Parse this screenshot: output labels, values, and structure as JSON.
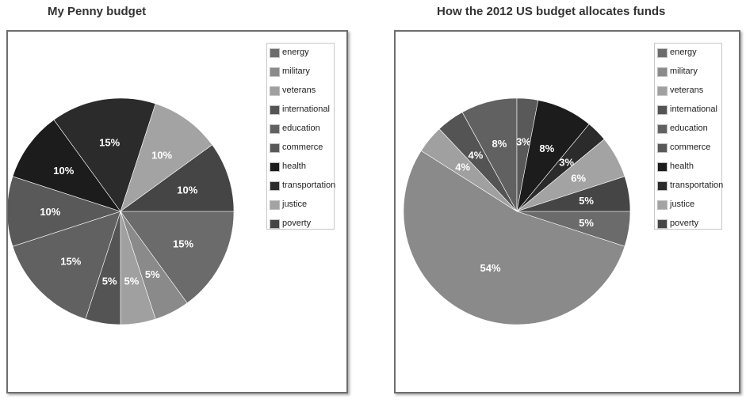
{
  "chart_data": [
    {
      "type": "pie",
      "title": "My Penny budget",
      "legend_placement": "top-right",
      "series": [
        {
          "label": "energy",
          "value": 15,
          "data_label": "15%",
          "color": "#6b6b6b"
        },
        {
          "label": "military",
          "value": 5,
          "data_label": "5%",
          "color": "#8a8a8a"
        },
        {
          "label": "veterans",
          "value": 5,
          "data_label": "5%",
          "color": "#a0a0a0"
        },
        {
          "label": "international",
          "value": 5,
          "data_label": "5%",
          "color": "#545454"
        },
        {
          "label": "education",
          "value": 15,
          "data_label": "15%",
          "color": "#616161"
        },
        {
          "label": "commerce",
          "value": 10,
          "data_label": "10%",
          "color": "#595959"
        },
        {
          "label": "health",
          "value": 10,
          "data_label": "10%",
          "color": "#1c1c1c"
        },
        {
          "label": "transportation",
          "value": 15,
          "data_label": "15%",
          "color": "#2b2b2b"
        },
        {
          "label": "justice",
          "value": 10,
          "data_label": "10%",
          "color": "#a3a3a3"
        },
        {
          "label": "poverty",
          "value": 10,
          "data_label": "10%",
          "color": "#454545"
        }
      ]
    },
    {
      "type": "pie",
      "title": "How the 2012 US budget allocates funds",
      "legend_placement": "top-right",
      "series": [
        {
          "label": "energy",
          "value": 5,
          "data_label": "5%",
          "color": "#6b6b6b"
        },
        {
          "label": "military",
          "value": 54,
          "data_label": "54%",
          "color": "#8a8a8a"
        },
        {
          "label": "veterans",
          "value": 4,
          "data_label": "4%",
          "color": "#a0a0a0"
        },
        {
          "label": "international",
          "value": 4,
          "data_label": "4%",
          "color": "#545454"
        },
        {
          "label": "education",
          "value": 8,
          "data_label": "8%",
          "color": "#616161"
        },
        {
          "label": "commerce",
          "value": 3,
          "data_label": "3%",
          "color": "#595959"
        },
        {
          "label": "health",
          "value": 8,
          "data_label": "8%",
          "color": "#1c1c1c"
        },
        {
          "label": "transportation",
          "value": 3,
          "data_label": "3%",
          "color": "#2b2b2b"
        },
        {
          "label": "justice",
          "value": 6,
          "data_label": "6%",
          "color": "#a3a3a3"
        },
        {
          "label": "poverty",
          "value": 5,
          "data_label": "5%",
          "color": "#454545"
        }
      ]
    }
  ]
}
